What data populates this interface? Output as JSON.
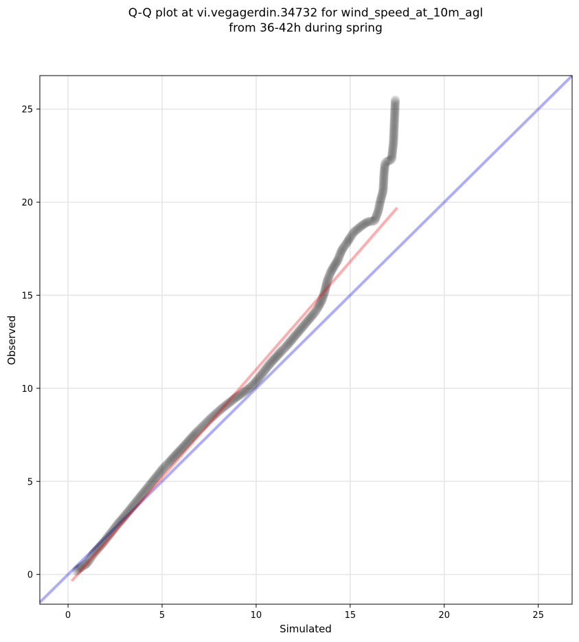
{
  "chart_data": {
    "type": "scatter",
    "title_line1": "Q-Q plot at vi.vegagerdin.34732 for wind_speed_at_10m_agl",
    "title_line2": "from 36-42h during spring",
    "xlabel": "Simulated",
    "ylabel": "Observed",
    "xlim": [
      -1.5,
      26.8
    ],
    "ylim": [
      -1.6,
      26.8
    ],
    "xticks": [
      0,
      5,
      10,
      15,
      20,
      25
    ],
    "yticks": [
      0,
      5,
      10,
      15,
      20,
      25
    ],
    "grid": true,
    "series": [
      {
        "kind": "quantile-points",
        "color": "#000000",
        "points": [
          [
            0.45,
            0.18
          ],
          [
            0.55,
            0.28
          ],
          [
            0.65,
            0.35
          ],
          [
            0.75,
            0.42
          ],
          [
            0.85,
            0.48
          ],
          [
            0.95,
            0.55
          ],
          [
            1.05,
            0.65
          ],
          [
            1.15,
            0.8
          ],
          [
            1.25,
            0.95
          ],
          [
            1.35,
            1.1
          ],
          [
            1.5,
            1.28
          ],
          [
            1.65,
            1.45
          ],
          [
            1.8,
            1.62
          ],
          [
            1.95,
            1.8
          ],
          [
            2.1,
            2.0
          ],
          [
            2.3,
            2.25
          ],
          [
            2.5,
            2.52
          ],
          [
            2.7,
            2.78
          ],
          [
            2.9,
            3.0
          ],
          [
            3.1,
            3.25
          ],
          [
            3.3,
            3.5
          ],
          [
            3.5,
            3.75
          ],
          [
            3.7,
            4.0
          ],
          [
            3.9,
            4.25
          ],
          [
            4.1,
            4.5
          ],
          [
            4.3,
            4.75
          ],
          [
            4.5,
            5.0
          ],
          [
            4.7,
            5.25
          ],
          [
            4.9,
            5.5
          ],
          [
            5.1,
            5.75
          ],
          [
            5.35,
            6.0
          ],
          [
            5.6,
            6.28
          ],
          [
            5.85,
            6.55
          ],
          [
            6.1,
            6.82
          ],
          [
            6.35,
            7.1
          ],
          [
            6.6,
            7.38
          ],
          [
            6.85,
            7.65
          ],
          [
            7.1,
            7.9
          ],
          [
            7.35,
            8.15
          ],
          [
            7.6,
            8.4
          ],
          [
            7.85,
            8.62
          ],
          [
            8.1,
            8.85
          ],
          [
            8.35,
            9.05
          ],
          [
            8.6,
            9.25
          ],
          [
            8.85,
            9.45
          ],
          [
            9.1,
            9.62
          ],
          [
            9.35,
            9.8
          ],
          [
            9.6,
            9.98
          ],
          [
            9.85,
            10.2
          ],
          [
            10.1,
            10.5
          ],
          [
            10.35,
            10.82
          ],
          [
            10.6,
            11.15
          ],
          [
            10.85,
            11.45
          ],
          [
            11.1,
            11.72
          ],
          [
            11.35,
            12.0
          ],
          [
            11.6,
            12.25
          ],
          [
            11.85,
            12.55
          ],
          [
            12.1,
            12.85
          ],
          [
            12.35,
            13.15
          ],
          [
            12.6,
            13.45
          ],
          [
            12.85,
            13.75
          ],
          [
            13.1,
            14.05
          ],
          [
            13.3,
            14.35
          ],
          [
            13.5,
            14.75
          ],
          [
            13.65,
            15.2
          ],
          [
            13.75,
            15.65
          ],
          [
            13.85,
            15.95
          ],
          [
            13.95,
            16.2
          ],
          [
            14.05,
            16.4
          ],
          [
            14.2,
            16.65
          ],
          [
            14.35,
            16.9
          ],
          [
            14.5,
            17.3
          ],
          [
            14.6,
            17.5
          ],
          [
            14.85,
            17.85
          ],
          [
            15.0,
            18.1
          ],
          [
            15.2,
            18.4
          ],
          [
            15.45,
            18.6
          ],
          [
            15.7,
            18.8
          ],
          [
            15.95,
            18.95
          ],
          [
            16.3,
            19.0
          ],
          [
            16.5,
            19.55
          ],
          [
            16.6,
            20.05
          ],
          [
            16.75,
            20.6
          ],
          [
            16.8,
            21.5
          ],
          [
            16.85,
            22.05
          ],
          [
            16.9,
            22.15
          ],
          [
            17.2,
            22.3
          ],
          [
            17.3,
            23.2
          ],
          [
            17.4,
            25.5
          ]
        ]
      },
      {
        "kind": "fit-line",
        "color": "#ff0000",
        "from": [
          0.2,
          -0.35
        ],
        "to": [
          17.5,
          19.7
        ]
      },
      {
        "kind": "identity-line",
        "color": "#0000ff",
        "from": [
          -1.5,
          -1.5
        ],
        "to": [
          26.8,
          26.8
        ]
      }
    ]
  }
}
